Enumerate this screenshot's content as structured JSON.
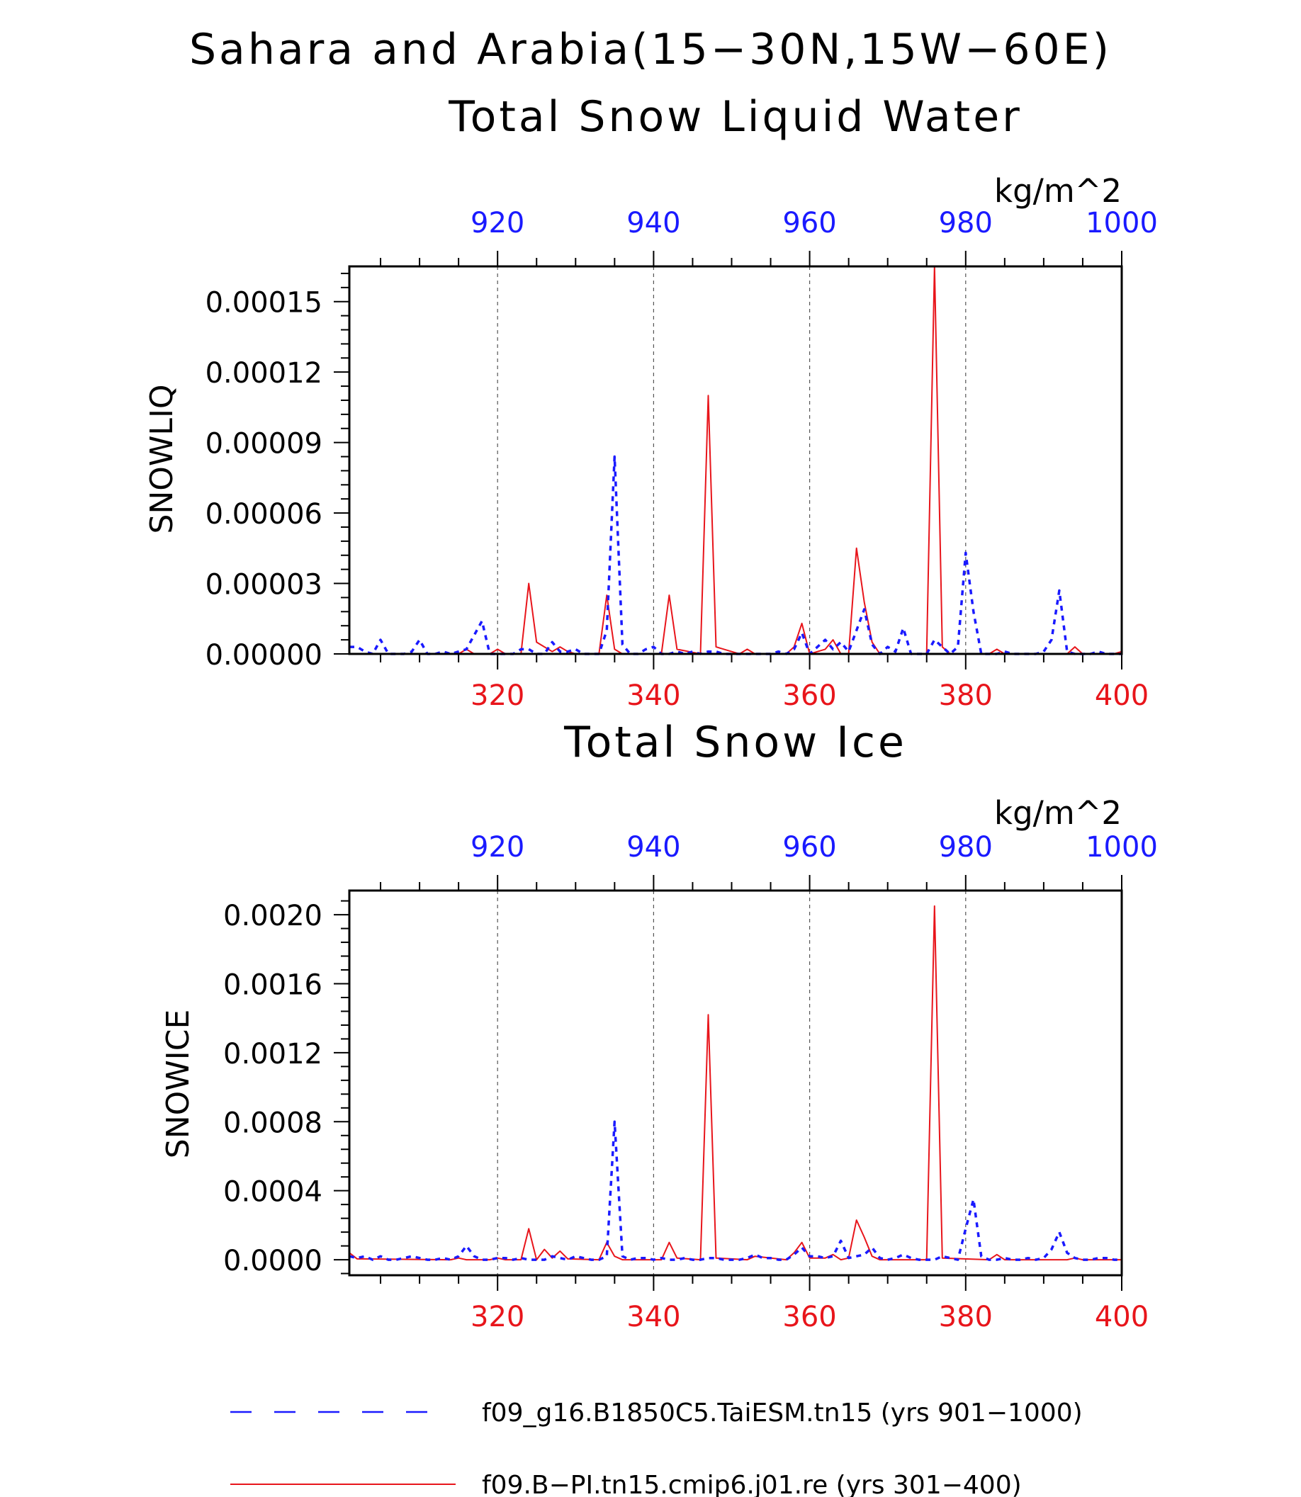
{
  "title_line1": "Sahara and Arabia(15−30N,15W−60E)",
  "colors": {
    "red": "#e8151b",
    "blue": "#1a1aff",
    "axis": "#000000",
    "grid": "#555555"
  },
  "legend": [
    {
      "label": "f09_g16.B1850C5.TaiESM.tn15 (yrs 901−1000)",
      "color": "#1a1aff",
      "style": "dashed"
    },
    {
      "label": "f09.B−PI.tn15.cmip6.j01.re (yrs 301−400)",
      "color": "#e8151b",
      "style": "solid"
    }
  ],
  "chart_data": [
    {
      "type": "line",
      "title": "Total Snow Liquid Water",
      "units": "kg/m^2",
      "ylabel": "SNOWLIQ",
      "xlim": [
        301,
        400
      ],
      "x_top_lim": [
        901,
        1000
      ],
      "ylim": [
        0,
        0.000165
      ],
      "yticks": [
        "0.00000",
        "0.00003",
        "0.00006",
        "0.00009",
        "0.00012",
        "0.00015"
      ],
      "ytick_values": [
        0,
        3e-05,
        6e-05,
        9e-05,
        0.00012,
        0.00015
      ],
      "xticks_bottom": [
        320,
        340,
        360,
        380,
        400
      ],
      "xticks_top": [
        920,
        940,
        960,
        980,
        1000
      ],
      "grid_x": [
        320,
        340,
        360,
        380
      ],
      "series": [
        {
          "axis": "bottom",
          "color": "#e8151b",
          "style": "solid",
          "x": [
            301,
            315,
            316,
            317,
            318,
            319,
            320,
            321,
            322,
            323,
            324,
            325,
            326,
            327,
            328,
            329,
            330,
            333,
            334,
            335,
            336,
            341,
            342,
            343,
            346,
            347,
            348,
            351,
            352,
            353,
            357,
            358,
            359,
            360,
            362,
            363,
            364,
            365,
            366,
            367,
            368,
            369,
            375,
            376,
            377,
            378,
            383,
            384,
            385,
            393,
            394,
            395,
            399,
            400
          ],
          "y": [
            0,
            0,
            2e-06,
            0,
            0,
            0,
            2e-06,
            0,
            0,
            0,
            3e-05,
            5e-06,
            3e-06,
            1e-06,
            3e-06,
            1e-06,
            0,
            0,
            2.5e-05,
            2e-06,
            0,
            0,
            2.5e-05,
            2e-06,
            0,
            0.00011,
            3e-06,
            0,
            2e-06,
            0,
            0,
            3e-06,
            1.3e-05,
            0,
            2e-06,
            6e-06,
            0,
            0,
            4.5e-05,
            2.2e-05,
            5e-06,
            0,
            0,
            0.000165,
            3e-06,
            0,
            0,
            2e-06,
            0,
            0,
            3e-06,
            0,
            0,
            1e-06
          ]
        },
        {
          "axis": "top",
          "color": "#1a1aff",
          "style": "dashed",
          "x": [
            901,
            902,
            903,
            904,
            905,
            906,
            907,
            908,
            909,
            910,
            911,
            912,
            913,
            914,
            915,
            916,
            917,
            918,
            919,
            920,
            921,
            922,
            923,
            924,
            925,
            926,
            927,
            928,
            929,
            930,
            931,
            932,
            933,
            934,
            935,
            936,
            937,
            938,
            939,
            940,
            941,
            942,
            943,
            944,
            945,
            946,
            947,
            948,
            949,
            950,
            955,
            956,
            957,
            958,
            959,
            960,
            961,
            962,
            963,
            964,
            965,
            966,
            967,
            968,
            969,
            970,
            971,
            972,
            973,
            974,
            975,
            976,
            977,
            978,
            979,
            980,
            981,
            982,
            983,
            984,
            985,
            986,
            987,
            988,
            989,
            990,
            991,
            992,
            993,
            994,
            995,
            996,
            997,
            998,
            999,
            1000
          ],
          "y": [
            3e-06,
            3e-06,
            1e-06,
            0,
            6e-06,
            0,
            0,
            0,
            1e-06,
            6e-06,
            0,
            0,
            1e-06,
            0,
            1e-06,
            2e-06,
            8e-06,
            1.4e-05,
            0,
            0,
            0,
            0,
            2e-06,
            2e-06,
            0,
            0,
            5e-06,
            1e-06,
            1e-06,
            2e-06,
            0,
            0,
            0,
            1e-05,
            8.4e-05,
            4e-06,
            0,
            0,
            2e-06,
            3e-06,
            0,
            0,
            1e-06,
            0,
            1e-06,
            0,
            1e-06,
            1e-06,
            0,
            0,
            0,
            1e-06,
            0,
            2e-06,
            9e-06,
            0,
            3e-06,
            6e-06,
            2e-06,
            5e-06,
            1e-06,
            1e-05,
            1.9e-05,
            4e-06,
            0,
            3e-06,
            1e-06,
            1.1e-05,
            0,
            0,
            0,
            6e-06,
            3e-06,
            0,
            3e-06,
            4.3e-05,
            1.8e-05,
            0,
            0,
            0,
            1e-06,
            0,
            0,
            0,
            0,
            1e-06,
            6e-06,
            2.7e-05,
            1e-06,
            0,
            0,
            0,
            1e-06,
            0,
            0,
            0
          ]
        }
      ]
    },
    {
      "type": "line",
      "title": "Total Snow Ice",
      "units": "kg/m^2",
      "ylabel": "SNOWICE",
      "xlim": [
        301,
        400
      ],
      "x_top_lim": [
        901,
        1000
      ],
      "ylim": [
        -9e-05,
        0.00214
      ],
      "yticks": [
        "0.0000",
        "0.0004",
        "0.0008",
        "0.0012",
        "0.0016",
        "0.0020"
      ],
      "ytick_values": [
        0,
        0.0004,
        0.0008,
        0.0012,
        0.0016,
        0.002
      ],
      "xticks_bottom": [
        320,
        340,
        360,
        380,
        400
      ],
      "xticks_top": [
        920,
        940,
        960,
        980,
        1000
      ],
      "grid_x": [
        320,
        340,
        360,
        380
      ],
      "series": [
        {
          "axis": "bottom",
          "color": "#e8151b",
          "style": "solid",
          "x": [
            301,
            302,
            314,
            315,
            316,
            319,
            320,
            321,
            323,
            324,
            325,
            326,
            327,
            328,
            329,
            333,
            334,
            335,
            336,
            341,
            342,
            343,
            346,
            347,
            348,
            352,
            353,
            357,
            358,
            359,
            360,
            362,
            363,
            364,
            365,
            366,
            367,
            368,
            369,
            375,
            376,
            377,
            383,
            384,
            385,
            393,
            394,
            395,
            400
          ],
          "y": [
            4e-05,
            5e-06,
            0,
            1e-05,
            0,
            0,
            1e-05,
            0,
            0,
            0.00018,
            0,
            6e-05,
            1e-05,
            5e-05,
            5e-06,
            0,
            0.0001,
            2e-05,
            0,
            0,
            0.0001,
            1e-05,
            0,
            0.00142,
            1e-05,
            0,
            2e-05,
            0,
            4e-05,
            0.0001,
            1e-05,
            1e-05,
            3e-05,
            0,
            1e-05,
            0.00023,
            0.00013,
            2e-05,
            0,
            0,
            0.00205,
            1e-05,
            0,
            3e-05,
            0,
            0,
            1e-05,
            0,
            0
          ]
        },
        {
          "axis": "top",
          "color": "#1a1aff",
          "style": "dashed",
          "x": [
            901,
            902,
            903,
            904,
            905,
            906,
            907,
            908,
            909,
            910,
            911,
            912,
            913,
            914,
            915,
            916,
            917,
            918,
            919,
            920,
            921,
            922,
            923,
            924,
            925,
            926,
            927,
            928,
            929,
            930,
            931,
            932,
            933,
            934,
            935,
            936,
            937,
            938,
            939,
            940,
            941,
            942,
            943,
            944,
            945,
            946,
            947,
            948,
            949,
            950,
            951,
            952,
            953,
            954,
            955,
            956,
            957,
            958,
            959,
            960,
            961,
            962,
            963,
            964,
            965,
            966,
            967,
            968,
            969,
            970,
            971,
            972,
            973,
            974,
            975,
            976,
            977,
            978,
            979,
            980,
            981,
            982,
            983,
            984,
            985,
            986,
            987,
            988,
            989,
            990,
            991,
            992,
            993,
            994,
            995,
            996,
            997,
            998,
            999,
            1000
          ],
          "y": [
            2e-05,
            1e-05,
            2e-05,
            0,
            2e-05,
            0,
            0,
            1e-05,
            2e-05,
            1e-05,
            0,
            0,
            1e-05,
            0,
            2e-05,
            8e-05,
            2e-05,
            0,
            0,
            1e-05,
            1e-05,
            0,
            1e-05,
            0,
            0,
            0,
            2e-05,
            1e-05,
            0,
            2e-05,
            1e-05,
            0,
            0,
            2e-05,
            0.0008,
            2e-05,
            0,
            1e-05,
            1e-05,
            0,
            1e-05,
            0,
            0,
            1e-05,
            0,
            0,
            1e-05,
            1e-05,
            0,
            0,
            0,
            1e-05,
            3e-05,
            1e-05,
            1e-05,
            0,
            0,
            3e-05,
            7e-05,
            2e-05,
            2e-05,
            1e-05,
            2e-05,
            0.00011,
            1e-05,
            2e-05,
            3e-05,
            7e-05,
            1e-05,
            0,
            1e-05,
            3e-05,
            1e-05,
            0,
            0,
            0,
            2e-05,
            1e-05,
            0,
            0.00018,
            0.00035,
            2e-05,
            0,
            0,
            1e-05,
            0,
            0,
            1e-05,
            0,
            1e-05,
            6e-05,
            0.00016,
            4e-05,
            1e-05,
            0,
            0,
            1e-05,
            1e-05,
            0,
            0
          ]
        }
      ]
    }
  ]
}
